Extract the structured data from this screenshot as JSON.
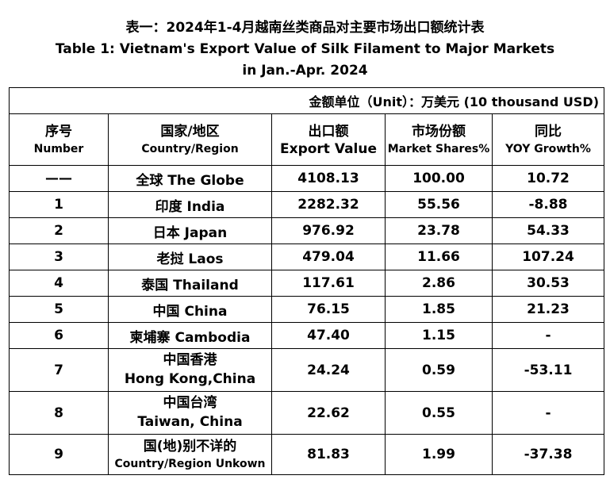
{
  "title": {
    "line1": "表一：2024年1-4月越南丝类商品对主要市场出口额统计表",
    "line2": "Table 1: Vietnam's Export Value of Silk Filament to Major Markets",
    "line3": "in Jan.-Apr. 2024"
  },
  "unit_label": "金额单位（Unit）：万美元 (10 thousand USD)",
  "headers": {
    "number": {
      "cn": "序号",
      "en": "Number"
    },
    "country": {
      "cn": "国家/地区",
      "en": "Country/Region"
    },
    "export_value": {
      "cn": "出口额",
      "en": "Export Value"
    },
    "market_share": {
      "cn": "市场份额",
      "en": "Market Shares%"
    },
    "yoy": {
      "cn": "同比",
      "en": "YOY Growth%"
    }
  },
  "rows": [
    {
      "number": "——",
      "country": "全球 The Globe",
      "export_value": "4108.13",
      "market_share": "100.00",
      "yoy": "10.72"
    },
    {
      "number": "1",
      "country": "印度 India",
      "export_value": "2282.32",
      "market_share": "55.56",
      "yoy": "-8.88"
    },
    {
      "number": "2",
      "country": "日本 Japan",
      "export_value": "976.92",
      "market_share": "23.78",
      "yoy": "54.33"
    },
    {
      "number": "3",
      "country": "老挝 Laos",
      "export_value": "479.04",
      "market_share": "11.66",
      "yoy": "107.24"
    },
    {
      "number": "4",
      "country": "泰国 Thailand",
      "export_value": "117.61",
      "market_share": "2.86",
      "yoy": "30.53"
    },
    {
      "number": "5",
      "country": "中国 China",
      "export_value": "76.15",
      "market_share": "1.85",
      "yoy": "21.23"
    },
    {
      "number": "6",
      "country": "柬埔寨 Cambodia",
      "export_value": "47.40",
      "market_share": "1.15",
      "yoy": "-"
    },
    {
      "number": "7",
      "country_cn": "中国香港",
      "country_en": "Hong Kong,China",
      "export_value": "24.24",
      "market_share": "0.59",
      "yoy": "-53.11"
    },
    {
      "number": "8",
      "country_cn": "中国台湾",
      "country_en": "Taiwan, China",
      "export_value": "22.62",
      "market_share": "0.55",
      "yoy": "-"
    },
    {
      "number": "9",
      "country_cn": "国(地)别不详的",
      "country_en": "Country/Region Unkown",
      "export_value": "81.83",
      "market_share": "1.99",
      "yoy": "-37.38"
    }
  ]
}
